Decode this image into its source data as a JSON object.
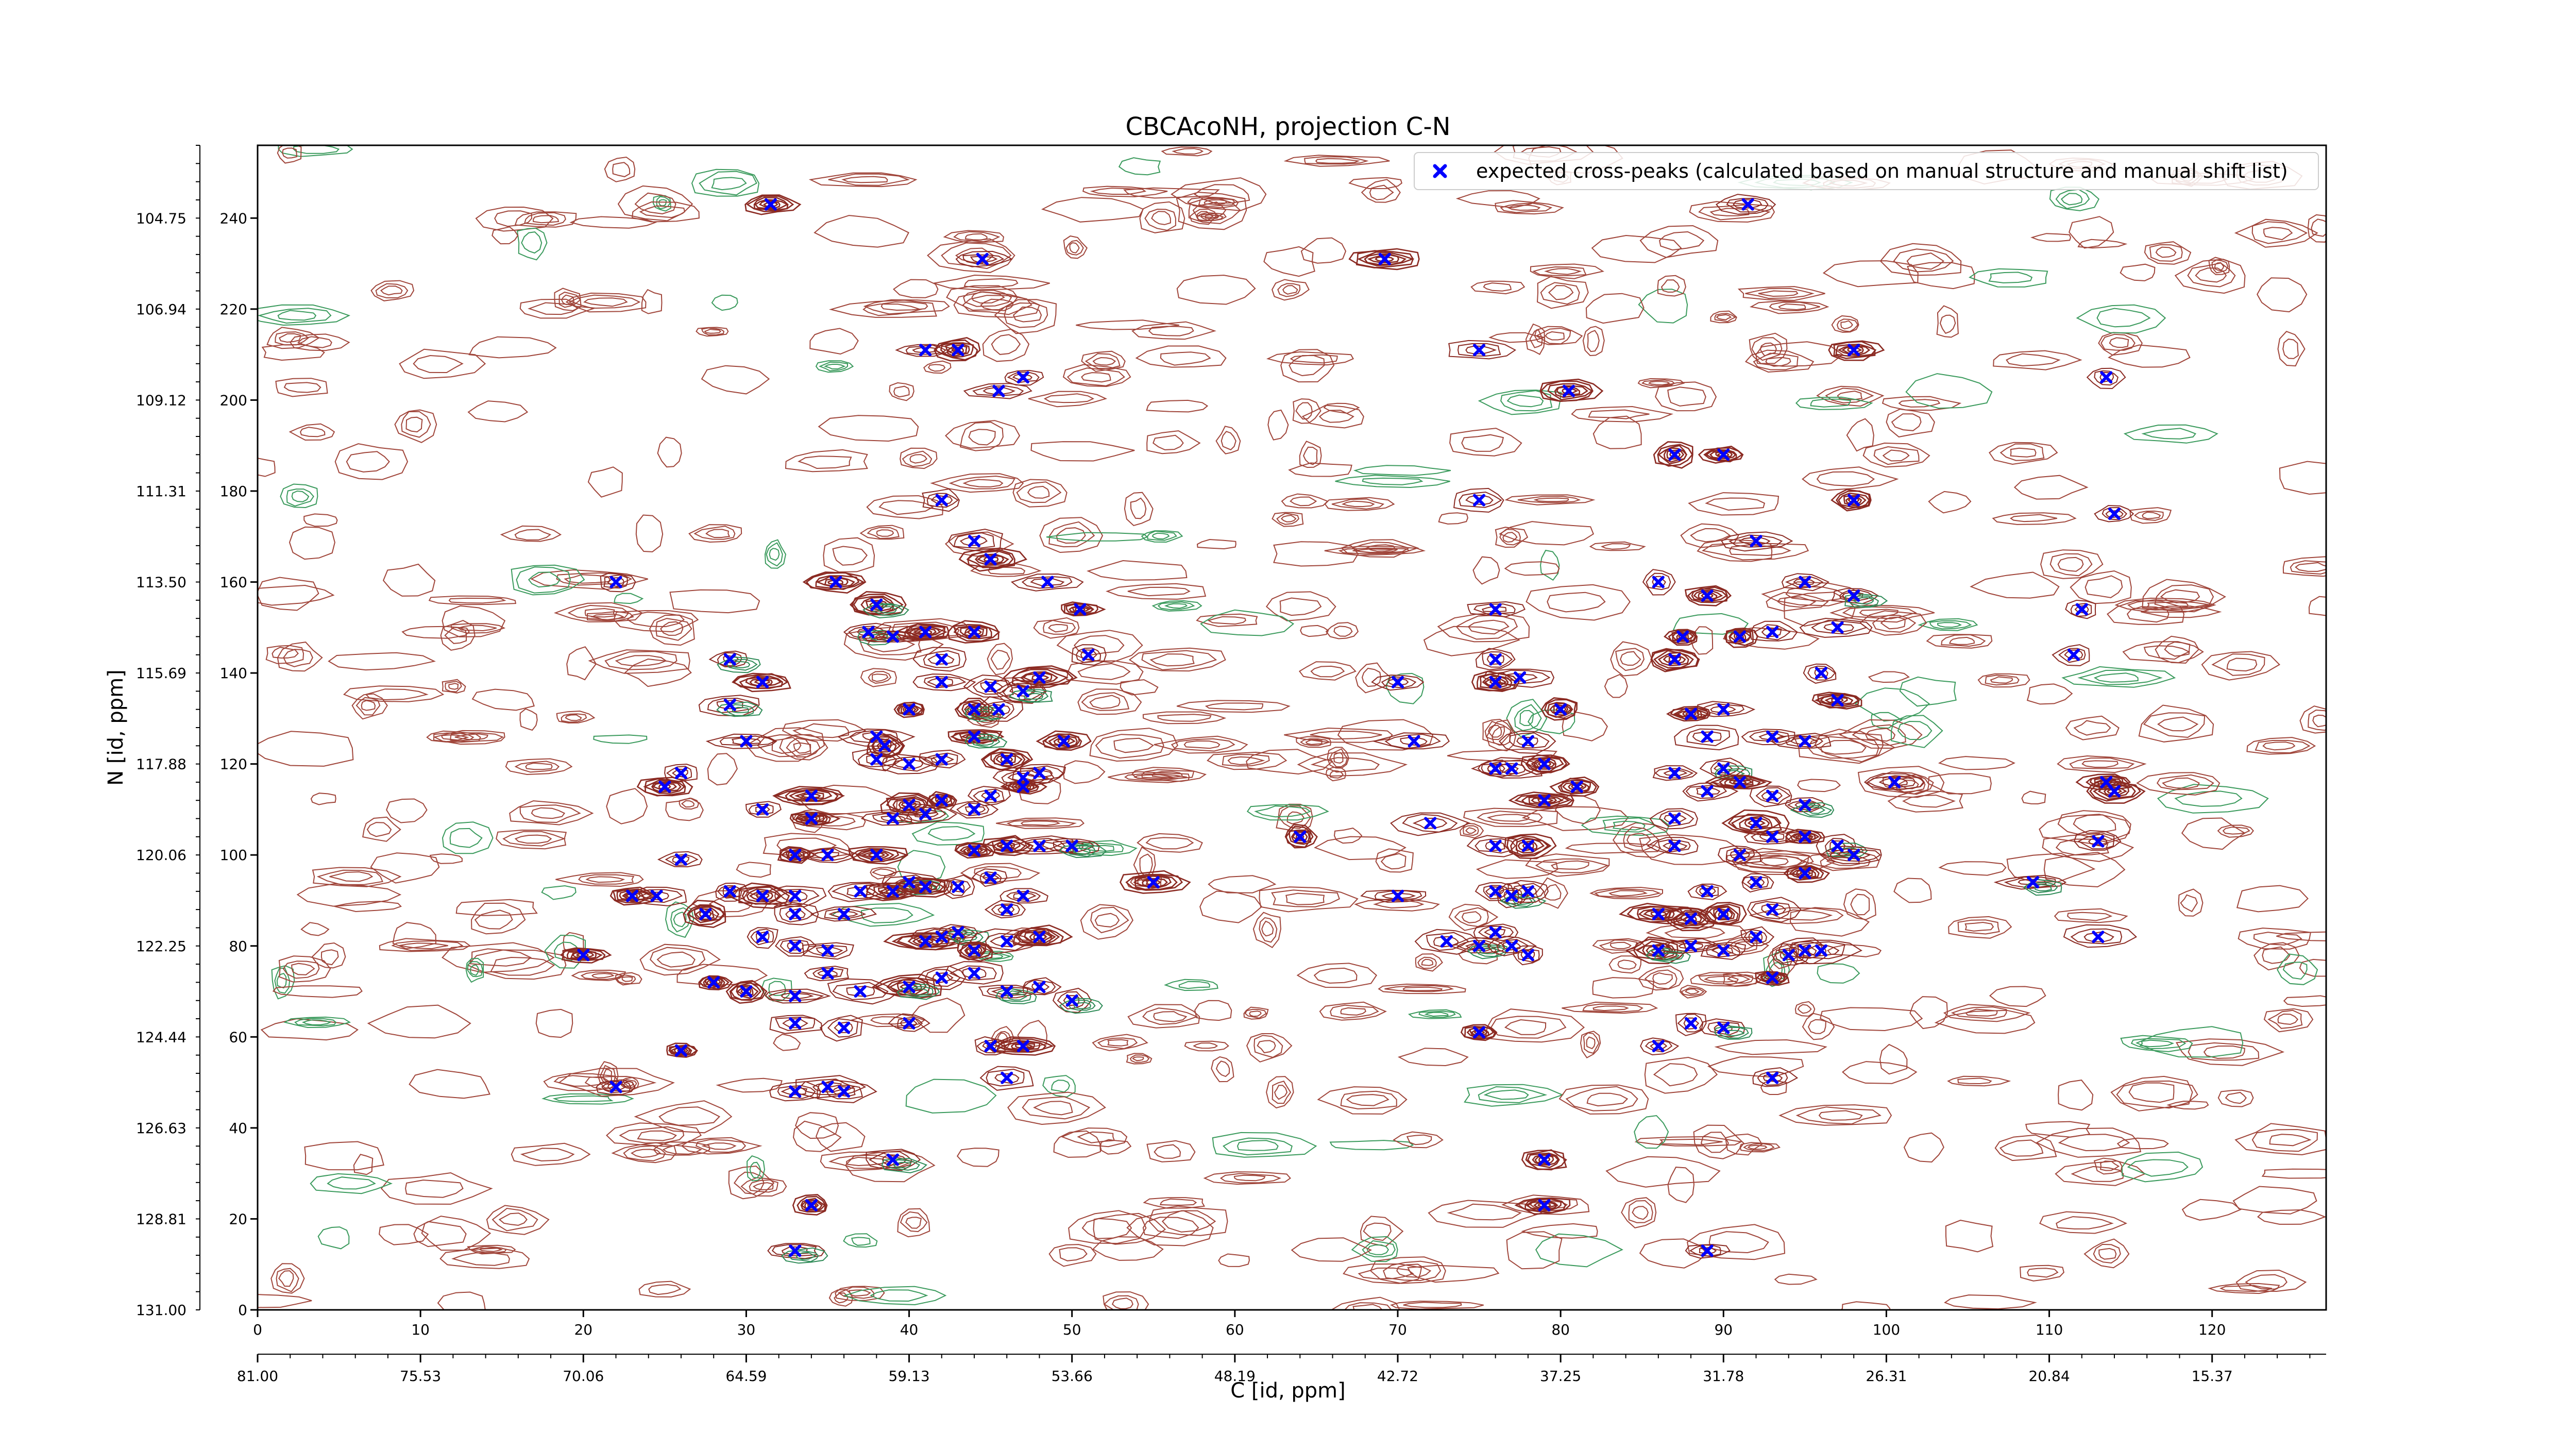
{
  "chart_data": {
    "type": "scatter",
    "title": "CBCAcoNH, projection C-N",
    "xlabel": "C [id, ppm]",
    "ylabel": "N [id, ppm]",
    "x_index_range": [
      0,
      127
    ],
    "y_index_range": [
      0,
      256
    ],
    "x_index_ticks": [
      0,
      10,
      20,
      30,
      40,
      50,
      60,
      70,
      80,
      90,
      100,
      110,
      120
    ],
    "x_ppm_ticks": [
      "81.00",
      "75.53",
      "70.06",
      "64.59",
      "59.13",
      "53.66",
      "48.19",
      "42.72",
      "37.25",
      "31.78",
      "26.31",
      "20.84",
      "15.37"
    ],
    "y_index_ticks": [
      0,
      20,
      40,
      60,
      80,
      100,
      120,
      140,
      160,
      180,
      200,
      220,
      240
    ],
    "y_ppm_ticks": [
      "131.00",
      "128.81",
      "126.63",
      "124.44",
      "122.25",
      "120.06",
      "117.88",
      "115.69",
      "113.50",
      "111.31",
      "109.12",
      "106.94",
      "104.75"
    ],
    "legend_position": "upper right",
    "series": [
      {
        "name": "expected cross-peaks (calculated based on manual structure and manual shift list)",
        "color": "#0000ff",
        "marker": "x",
        "points": [
          [
            31.5,
            243
          ],
          [
            44.5,
            231
          ],
          [
            69.2,
            231
          ],
          [
            91.5,
            243
          ],
          [
            41,
            211
          ],
          [
            43,
            211
          ],
          [
            47,
            205
          ],
          [
            45.5,
            202
          ],
          [
            75,
            211
          ],
          [
            98,
            211
          ],
          [
            113.5,
            205
          ],
          [
            80.5,
            202
          ],
          [
            87,
            188
          ],
          [
            90,
            188
          ],
          [
            42,
            178
          ],
          [
            75,
            178
          ],
          [
            98,
            178
          ],
          [
            114,
            175
          ],
          [
            44,
            169
          ],
          [
            92,
            169
          ],
          [
            45,
            165
          ],
          [
            22,
            160
          ],
          [
            35.5,
            160
          ],
          [
            48.5,
            160
          ],
          [
            76,
            154
          ],
          [
            86,
            160
          ],
          [
            89,
            157
          ],
          [
            95,
            160
          ],
          [
            98,
            157
          ],
          [
            112,
            154
          ],
          [
            38,
            155
          ],
          [
            50.5,
            154
          ],
          [
            37.5,
            149
          ],
          [
            41,
            149
          ],
          [
            44,
            149
          ],
          [
            39,
            148
          ],
          [
            87.5,
            148
          ],
          [
            91,
            148
          ],
          [
            93,
            149
          ],
          [
            97,
            150
          ],
          [
            29,
            143
          ],
          [
            51,
            144
          ],
          [
            42,
            143
          ],
          [
            76,
            143
          ],
          [
            87,
            143
          ],
          [
            111.5,
            144
          ],
          [
            31,
            138
          ],
          [
            42,
            138
          ],
          [
            45,
            137
          ],
          [
            47,
            136
          ],
          [
            48,
            139
          ],
          [
            70,
            138
          ],
          [
            76,
            138
          ],
          [
            77.5,
            139
          ],
          [
            96,
            140
          ],
          [
            29,
            133
          ],
          [
            40,
            132
          ],
          [
            44,
            132
          ],
          [
            45.5,
            132
          ],
          [
            80,
            132
          ],
          [
            88,
            131
          ],
          [
            90,
            132
          ],
          [
            97,
            134
          ],
          [
            30,
            125
          ],
          [
            38,
            126
          ],
          [
            38.5,
            124
          ],
          [
            44,
            126
          ],
          [
            49.5,
            125
          ],
          [
            71,
            125
          ],
          [
            78,
            125
          ],
          [
            89,
            126
          ],
          [
            93,
            126
          ],
          [
            95,
            125
          ],
          [
            38,
            121
          ],
          [
            40,
            120
          ],
          [
            42,
            121
          ],
          [
            46,
            121
          ],
          [
            76,
            119
          ],
          [
            77,
            119
          ],
          [
            79,
            120
          ],
          [
            87,
            118
          ],
          [
            90,
            119
          ],
          [
            91,
            116
          ],
          [
            26,
            118
          ],
          [
            25,
            115
          ],
          [
            47,
            117
          ],
          [
            48,
            118
          ],
          [
            100.5,
            116
          ],
          [
            113.5,
            116
          ],
          [
            114,
            114
          ],
          [
            31,
            110
          ],
          [
            34,
            113
          ],
          [
            40,
            111
          ],
          [
            42,
            112
          ],
          [
            45,
            113
          ],
          [
            47,
            115
          ],
          [
            79,
            112
          ],
          [
            89,
            114
          ],
          [
            93,
            113
          ],
          [
            95,
            111
          ],
          [
            81,
            115
          ],
          [
            34,
            108
          ],
          [
            39,
            108
          ],
          [
            41,
            109
          ],
          [
            44,
            110
          ],
          [
            72,
            107
          ],
          [
            87,
            108
          ],
          [
            92,
            107
          ],
          [
            26,
            99
          ],
          [
            33,
            100
          ],
          [
            35,
            100
          ],
          [
            38,
            100
          ],
          [
            44,
            101
          ],
          [
            46,
            102
          ],
          [
            48,
            102
          ],
          [
            50,
            102
          ],
          [
            64,
            104
          ],
          [
            76,
            102
          ],
          [
            78,
            102
          ],
          [
            87,
            102
          ],
          [
            91,
            100
          ],
          [
            93,
            104
          ],
          [
            95,
            104
          ],
          [
            97,
            102
          ],
          [
            98,
            100
          ],
          [
            113,
            103
          ],
          [
            29,
            92
          ],
          [
            31,
            91
          ],
          [
            33,
            91
          ],
          [
            37,
            92
          ],
          [
            39,
            92
          ],
          [
            40,
            94
          ],
          [
            41,
            93
          ],
          [
            43,
            93
          ],
          [
            45,
            95
          ],
          [
            47,
            91
          ],
          [
            55,
            94
          ],
          [
            70,
            91
          ],
          [
            76,
            92
          ],
          [
            77,
            91
          ],
          [
            78,
            92
          ],
          [
            89,
            92
          ],
          [
            92,
            94
          ],
          [
            95,
            96
          ],
          [
            109,
            94
          ],
          [
            23,
            91
          ],
          [
            24.5,
            91
          ],
          [
            27.5,
            87
          ],
          [
            33,
            87
          ],
          [
            36,
            87
          ],
          [
            46,
            88
          ],
          [
            86,
            87
          ],
          [
            88,
            86
          ],
          [
            90,
            87
          ],
          [
            93,
            88
          ],
          [
            31,
            82
          ],
          [
            33,
            80
          ],
          [
            35,
            79
          ],
          [
            41,
            81
          ],
          [
            42,
            82
          ],
          [
            43,
            83
          ],
          [
            44,
            79
          ],
          [
            46,
            81
          ],
          [
            48,
            82
          ],
          [
            73,
            81
          ],
          [
            75,
            80
          ],
          [
            76,
            83
          ],
          [
            77,
            80
          ],
          [
            78,
            78
          ],
          [
            86,
            79
          ],
          [
            88,
            80
          ],
          [
            90,
            79
          ],
          [
            92,
            82
          ],
          [
            94,
            78
          ],
          [
            95,
            79
          ],
          [
            96,
            79
          ],
          [
            113,
            82
          ],
          [
            20,
            78
          ],
          [
            28,
            72
          ],
          [
            30,
            70
          ],
          [
            33,
            69
          ],
          [
            35,
            74
          ],
          [
            37,
            70
          ],
          [
            40,
            71
          ],
          [
            42,
            73
          ],
          [
            44,
            74
          ],
          [
            46,
            70
          ],
          [
            48,
            71
          ],
          [
            50,
            68
          ],
          [
            93,
            73
          ],
          [
            26,
            57
          ],
          [
            33,
            63
          ],
          [
            36,
            62
          ],
          [
            40,
            63
          ],
          [
            45,
            58
          ],
          [
            47,
            58
          ],
          [
            75,
            61
          ],
          [
            86,
            58
          ],
          [
            88,
            63
          ],
          [
            90,
            62
          ],
          [
            22,
            49
          ],
          [
            33,
            48
          ],
          [
            35,
            49
          ],
          [
            36,
            48
          ],
          [
            46,
            51
          ],
          [
            93,
            51
          ],
          [
            39,
            33
          ],
          [
            79,
            33
          ],
          [
            34,
            23
          ],
          [
            79,
            23
          ],
          [
            33,
            13
          ],
          [
            89,
            13
          ]
        ]
      }
    ]
  }
}
